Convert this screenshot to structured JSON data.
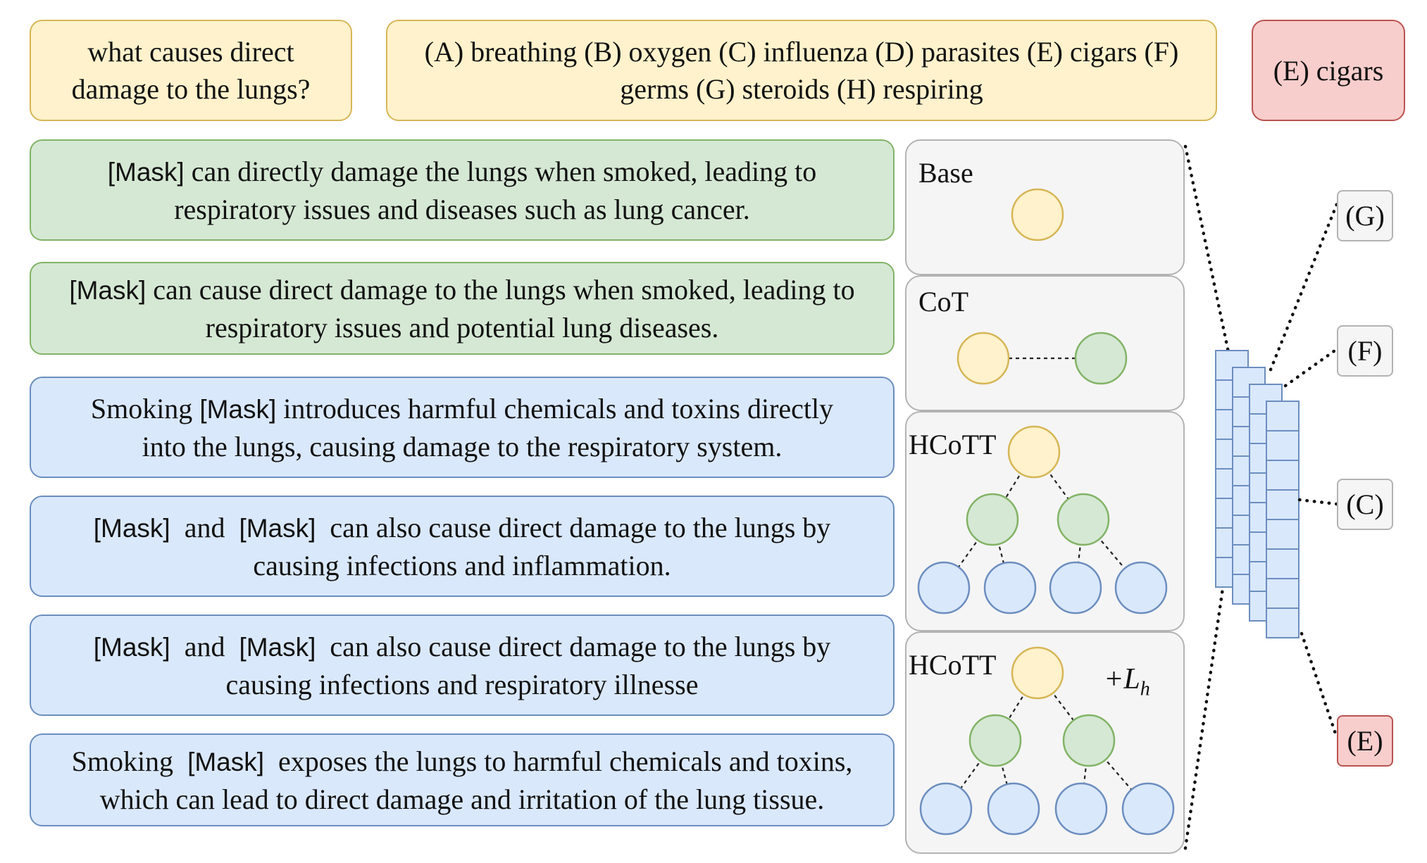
{
  "question": "what causes direct damage to the lungs?",
  "choices": "(A) breathing (B) oxygen (C) influenza (D) parasites (E) cigars (F) germs (G) steroids (H) respiring",
  "answer": "(E) cigars",
  "mask_token": "[Mask]",
  "explanations": [
    {
      "lines": [
        [
          {
            "t": "[Mask]",
            "m": true
          },
          {
            "t": " can directly damage the lungs when smoked, leading to"
          }
        ],
        [
          {
            "t": "respiratory issues and diseases such as lung cancer."
          }
        ]
      ]
    },
    {
      "lines": [
        [
          {
            "t": "[Mask]",
            "m": true
          },
          {
            "t": " can cause direct damage to the lungs when smoked, leading to"
          }
        ],
        [
          {
            "t": "respiratory issues and potential lung diseases."
          }
        ]
      ]
    },
    {
      "lines": [
        [
          {
            "t": "Smoking "
          },
          {
            "t": "[Mask]",
            "m": true
          },
          {
            "t": " introduces harmful chemicals and toxins directly"
          }
        ],
        [
          {
            "t": "into the lungs, causing damage to the respiratory system."
          }
        ]
      ]
    },
    {
      "lines": [
        [
          {
            "t": "[Mask]",
            "m": true
          },
          {
            "t": "  and  "
          },
          {
            "t": "[Mask]",
            "m": true
          },
          {
            "t": "  can also cause direct damage to the lungs by"
          }
        ],
        [
          {
            "t": "causing infections and inflammation."
          }
        ]
      ]
    },
    {
      "lines": [
        [
          {
            "t": "[Mask]",
            "m": true
          },
          {
            "t": "  and  "
          },
          {
            "t": "[Mask]",
            "m": true
          },
          {
            "t": "  can also cause direct damage to the lungs by"
          }
        ],
        [
          {
            "t": "causing infections and respiratory illnesse"
          }
        ]
      ]
    },
    {
      "lines": [
        [
          {
            "t": "Smoking  "
          },
          {
            "t": "[Mask]",
            "m": true
          },
          {
            "t": "  exposes the lungs to harmful chemicals and toxins,"
          }
        ],
        [
          {
            "t": "which can lead to direct damage and irritation of the lung tissue."
          }
        ]
      ]
    }
  ],
  "panels": {
    "base": "Base",
    "cot": "CoT",
    "hcott": "HCoTT",
    "hcott_lh": "HCoTT",
    "loss_plus": "+L",
    "loss_sub": "h"
  },
  "options": {
    "g": "(G)",
    "f": "(F)",
    "c": "(C)",
    "e": "(E)"
  },
  "colors": {
    "yellow_fill": "#fff2cc",
    "yellow_stroke": "#d6b656",
    "green_fill": "#d5e8d4",
    "green_stroke": "#82b366",
    "blue_fill": "#dae8fc",
    "blue_stroke": "#6c8ebf",
    "red_fill": "#f8cecc",
    "red_stroke": "#b85450"
  }
}
